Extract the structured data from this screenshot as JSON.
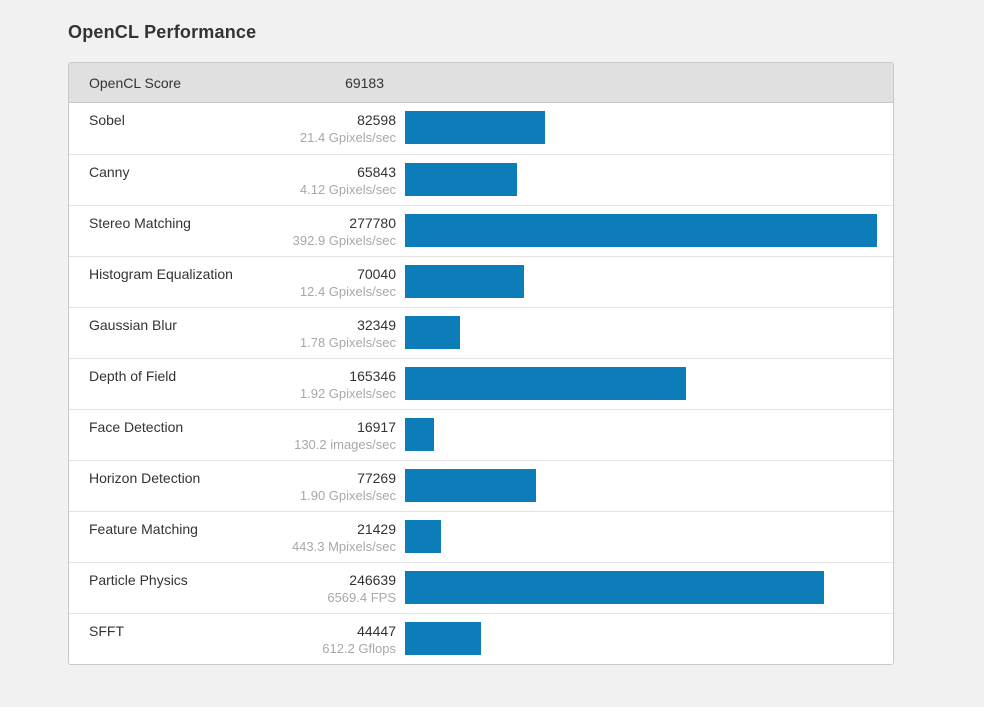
{
  "title": "OpenCL Performance",
  "header": {
    "label": "OpenCL Score",
    "score": "69183"
  },
  "table": {
    "rows": [
      {
        "name": "Sobel",
        "score": 82598,
        "rate": "21.4 Gpixels/sec"
      },
      {
        "name": "Canny",
        "score": 65843,
        "rate": "4.12 Gpixels/sec"
      },
      {
        "name": "Stereo Matching",
        "score": 277780,
        "rate": "392.9 Gpixels/sec"
      },
      {
        "name": "Histogram Equalization",
        "score": 70040,
        "rate": "12.4 Gpixels/sec"
      },
      {
        "name": "Gaussian Blur",
        "score": 32349,
        "rate": "1.78 Gpixels/sec"
      },
      {
        "name": "Depth of Field",
        "score": 165346,
        "rate": "1.92 Gpixels/sec"
      },
      {
        "name": "Face Detection",
        "score": 16917,
        "rate": "130.2 images/sec"
      },
      {
        "name": "Horizon Detection",
        "score": 77269,
        "rate": "1.90 Gpixels/sec"
      },
      {
        "name": "Feature Matching",
        "score": 21429,
        "rate": "443.3 Mpixels/sec"
      },
      {
        "name": "Particle Physics",
        "score": 246639,
        "rate": "6569.4 FPS"
      },
      {
        "name": "SFFT",
        "score": 44447,
        "rate": "612.2 Gflops"
      }
    ]
  },
  "colors": {
    "bar": "#0d7dba",
    "header_bg": "#e0e0e0",
    "page_bg": "#f1f1f1"
  },
  "chart_data": {
    "type": "bar",
    "orientation": "horizontal",
    "title": "OpenCL Performance",
    "overall_label": "OpenCL Score",
    "overall_score": 69183,
    "categories": [
      "Sobel",
      "Canny",
      "Stereo Matching",
      "Histogram Equalization",
      "Gaussian Blur",
      "Depth of Field",
      "Face Detection",
      "Horizon Detection",
      "Feature Matching",
      "Particle Physics",
      "SFFT"
    ],
    "values": [
      82598,
      65843,
      277780,
      70040,
      32349,
      165346,
      16917,
      77269,
      21429,
      246639,
      44447
    ],
    "rate_labels": [
      "21.4 Gpixels/sec",
      "4.12 Gpixels/sec",
      "392.9 Gpixels/sec",
      "12.4 Gpixels/sec",
      "1.78 Gpixels/sec",
      "1.92 Gpixels/sec",
      "130.2 images/sec",
      "1.90 Gpixels/sec",
      "443.3 Mpixels/sec",
      "6569.4 FPS",
      "612.2 Gflops"
    ],
    "xlim": [
      0,
      277780
    ],
    "bar_scale_max": 277780,
    "grid": false,
    "legend": false,
    "bar_color": "#0d7dba"
  }
}
